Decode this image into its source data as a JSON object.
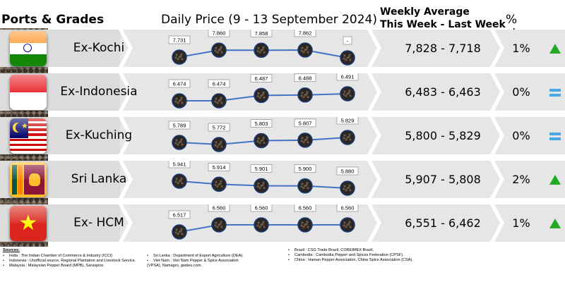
{
  "header": {
    "ports": "Ports & Grades",
    "daily": "Daily Price (9 - 13 September 2024)",
    "weekly_line1": "Weekly Average",
    "weekly_line2": "This Week - Last Week",
    "change": "% change"
  },
  "rows": [
    {
      "port": "Ex-Kochi",
      "weekly": "7,828 - 7,718",
      "pct": "1%",
      "trend": "up",
      "flag": {
        "type": "india",
        "colors": [
          "#ff9933",
          "#ffffff",
          "#138808",
          "#000080"
        ]
      }
    },
    {
      "port": "Ex-Indonesia",
      "weekly": "6,483 - 6,463",
      "pct": "0%",
      "trend": "equal",
      "flag": {
        "type": "indonesia",
        "colors": [
          "#e8262c",
          "#ffffff"
        ]
      }
    },
    {
      "port": "Ex-Kuching",
      "weekly": "5,800 - 5,829",
      "pct": "0%",
      "trend": "equal",
      "flag": {
        "type": "malaysia",
        "colors": [
          "#cc0001",
          "#ffffff",
          "#010066",
          "#ffcc00"
        ]
      }
    },
    {
      "port": "Sri Lanka",
      "weekly": "5,907 - 5,808",
      "pct": "2%",
      "trend": "up",
      "flag": {
        "type": "srilanka",
        "colors": [
          "#ffbe29",
          "#005641",
          "#ff8200",
          "#8d153a"
        ]
      }
    },
    {
      "port": "Ex- HCM",
      "weekly": "6,551 - 6,462",
      "pct": "1%",
      "trend": "up",
      "flag": {
        "type": "vietnam",
        "colors": [
          "#da251d",
          "#ffff00"
        ]
      }
    }
  ],
  "chart_data": [
    {
      "type": "line",
      "name": "Ex-Kochi",
      "x": [
        "9",
        "10",
        "11",
        "12",
        "13"
      ],
      "values": [
        7.731,
        7.86,
        7.858,
        7.862,
        null
      ],
      "labels": [
        "7.731",
        "7.860",
        "7.858",
        "7.862",
        "-"
      ]
    },
    {
      "type": "line",
      "name": "Ex-Indonesia",
      "x": [
        "9",
        "10",
        "11",
        "12",
        "13"
      ],
      "values": [
        6.474,
        6.474,
        6.487,
        6.488,
        6.491
      ],
      "labels": [
        "6.474",
        "6.474",
        "6.487",
        "6.488",
        "6.491"
      ]
    },
    {
      "type": "line",
      "name": "Ex-Kuching",
      "x": [
        "9",
        "10",
        "11",
        "12",
        "13"
      ],
      "values": [
        5.789,
        5.772,
        5.803,
        5.807,
        5.829
      ],
      "labels": [
        "5.789",
        "5.772",
        "5.803",
        "5.807",
        "5.829"
      ]
    },
    {
      "type": "line",
      "name": "Sri Lanka",
      "x": [
        "9",
        "10",
        "11",
        "12",
        "13"
      ],
      "values": [
        5.941,
        5.914,
        5.901,
        5.9,
        5.88
      ],
      "labels": [
        "5.941",
        "5.914",
        "5.901",
        "5.900",
        "5.880"
      ]
    },
    {
      "type": "line",
      "name": "Ex- HCM",
      "x": [
        "9",
        "10",
        "11",
        "12",
        "13"
      ],
      "values": [
        6.517,
        6.56,
        6.56,
        6.56,
        6.56
      ],
      "labels": [
        "6.517",
        "6.560",
        "6.560",
        "6.560",
        "6.560"
      ]
    }
  ],
  "sources": {
    "title": "Sources:",
    "col1": [
      "India : The Indian Chamber of Commerce & Industry (ICCI)",
      "Indonesia : Unofficial source, Regional Plantation and Livestock Service.",
      "Malaysia : Malaysian Pepper Board (MPB), Saraspice."
    ],
    "col2": [
      "Sri Lanka : Department of Export Agriculture (DEA).",
      "Viet Nam : Viet Nam Pepper & Spice Association (VPSA), Namagro. giatieu.com."
    ],
    "col3": [
      "Brazil : CSG Trade Brazil, COREIMEX Brazil.",
      "Cambodia : Cambodia Pepper and Spices Federation (CPSF).",
      "China : Hainan Pepper Association, China Spice Association (CSA)."
    ]
  }
}
